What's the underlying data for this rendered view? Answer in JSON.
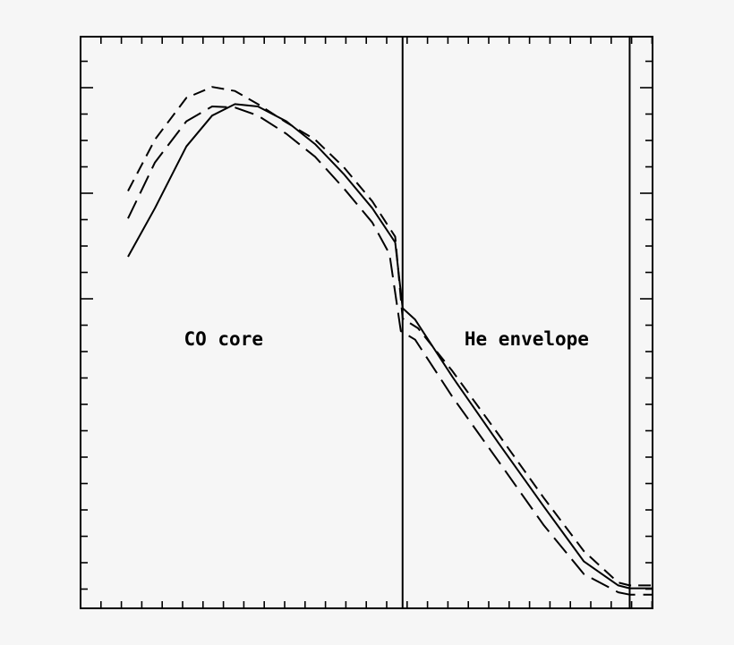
{
  "chart_data": {
    "type": "line",
    "title": "",
    "xlabel": "",
    "ylabel": "",
    "xlim": [
      0,
      1
    ],
    "ylim": [
      0,
      1
    ],
    "grid": false,
    "regions": [
      {
        "label": "CO core",
        "label_x": 0.25,
        "label_y": 0.46
      },
      {
        "label": "He envelope",
        "label_x": 0.78,
        "label_y": 0.46
      }
    ],
    "boundaries": [
      0.563,
      0.96
    ],
    "series": [
      {
        "style": "solid",
        "x": [
          0.083,
          0.13,
          0.185,
          0.23,
          0.27,
          0.31,
          0.36,
          0.41,
          0.46,
          0.51,
          0.55,
          0.563,
          0.585,
          0.65,
          0.73,
          0.81,
          0.88,
          0.94,
          0.96,
          1.0
        ],
        "y": [
          0.615,
          0.7,
          0.808,
          0.862,
          0.882,
          0.878,
          0.852,
          0.812,
          0.76,
          0.7,
          0.64,
          0.525,
          0.505,
          0.405,
          0.29,
          0.178,
          0.082,
          0.04,
          0.035,
          0.035
        ]
      },
      {
        "style": "long-dash",
        "x": [
          0.083,
          0.13,
          0.185,
          0.23,
          0.27,
          0.31,
          0.36,
          0.41,
          0.46,
          0.51,
          0.54,
          0.56,
          0.585,
          0.65,
          0.73,
          0.81,
          0.88,
          0.94,
          0.96,
          1.0
        ],
        "y": [
          0.682,
          0.78,
          0.852,
          0.878,
          0.876,
          0.862,
          0.83,
          0.79,
          0.735,
          0.675,
          0.62,
          0.485,
          0.47,
          0.37,
          0.258,
          0.145,
          0.06,
          0.028,
          0.024,
          0.024
        ]
      },
      {
        "style": "dash",
        "x": [
          0.083,
          0.13,
          0.185,
          0.23,
          0.27,
          0.31,
          0.36,
          0.41,
          0.46,
          0.51,
          0.55,
          0.563,
          0.59,
          0.65,
          0.73,
          0.81,
          0.88,
          0.94,
          0.96,
          1.0
        ],
        "y": [
          0.73,
          0.82,
          0.893,
          0.912,
          0.905,
          0.882,
          0.85,
          0.82,
          0.772,
          0.712,
          0.65,
          0.507,
          0.49,
          0.415,
          0.305,
          0.193,
          0.1,
          0.045,
          0.04,
          0.04
        ]
      }
    ]
  }
}
